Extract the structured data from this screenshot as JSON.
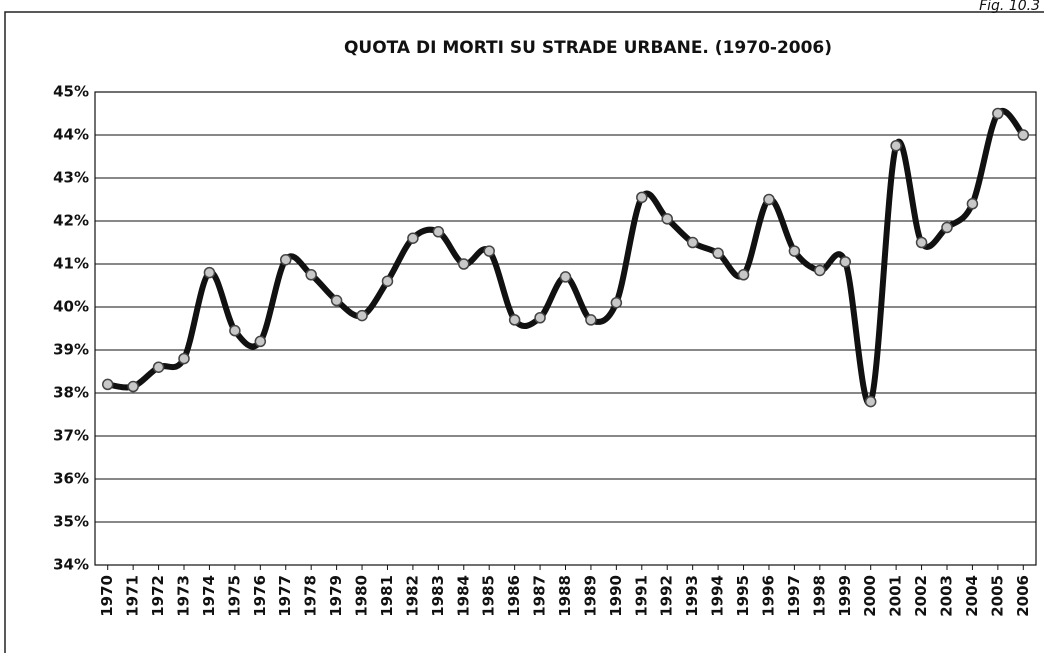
{
  "chart_data": {
    "type": "line",
    "title": "QUOTA DI MORTI SU STRADE URBANE. (1970-2006)",
    "annotation": "Fig. 10.3",
    "categories": [
      "1970",
      "1971",
      "1972",
      "1973",
      "1974",
      "1975",
      "1976",
      "1977",
      "1978",
      "1979",
      "1980",
      "1981",
      "1982",
      "1983",
      "1984",
      "1985",
      "1986",
      "1987",
      "1988",
      "1989",
      "1990",
      "1991",
      "1992",
      "1993",
      "1994",
      "1995",
      "1996",
      "1997",
      "1998",
      "1999",
      "2000",
      "2001",
      "2002",
      "2003",
      "2004",
      "2005",
      "2006"
    ],
    "values": [
      38.2,
      38.15,
      38.6,
      38.8,
      40.8,
      39.45,
      39.2,
      41.1,
      40.75,
      40.15,
      39.8,
      40.6,
      41.6,
      41.75,
      41.0,
      41.3,
      39.7,
      39.75,
      40.7,
      39.7,
      40.1,
      42.55,
      42.05,
      41.5,
      41.25,
      40.75,
      42.5,
      41.3,
      40.85,
      41.05,
      37.8,
      43.75,
      41.5,
      41.85,
      42.4,
      44.5,
      44.0
    ],
    "color": "#111111",
    "marker_color": "#c8c8c8",
    "ylim": [
      34,
      45
    ],
    "yticks": [
      {
        "value": 34,
        "label": "34%"
      },
      {
        "value": 35,
        "label": "35%"
      },
      {
        "value": 36,
        "label": "36%"
      },
      {
        "value": 37,
        "label": "37%"
      },
      {
        "value": 38,
        "label": "38%"
      },
      {
        "value": 39,
        "label": "39%"
      },
      {
        "value": 40,
        "label": "40%"
      },
      {
        "value": 41,
        "label": "41%"
      },
      {
        "value": 42,
        "label": "42%"
      },
      {
        "value": 43,
        "label": "43%"
      },
      {
        "value": 44,
        "label": "44%"
      },
      {
        "value": 45,
        "label": "45%"
      }
    ],
    "grid": true
  }
}
